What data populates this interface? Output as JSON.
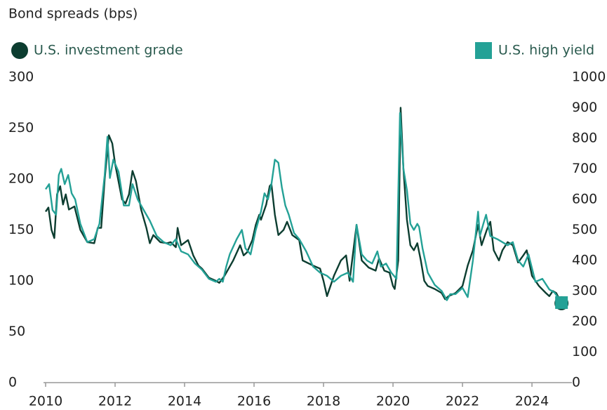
{
  "chart_data": {
    "type": "line",
    "title": "Bond spreads (bps)",
    "xlim": [
      2010,
      2025.15
    ],
    "xticks": [
      2010,
      2012,
      2014,
      2016,
      2018,
      2020,
      2022,
      2024
    ],
    "ylim": [
      0,
      300
    ],
    "yticks": [
      0,
      50,
      100,
      150,
      200,
      250,
      300
    ],
    "y2lim": [
      0,
      1000
    ],
    "y2ticks": [
      0,
      100,
      200,
      300,
      400,
      500,
      600,
      700,
      800,
      900,
      1000
    ],
    "grid": false,
    "series": [
      {
        "name": "U.S. investment grade",
        "color": "#0c3d30",
        "marker": "circle",
        "x": [
          2010.0,
          2010.08,
          2010.17,
          2010.25,
          2010.33,
          2010.42,
          2010.5,
          2010.58,
          2010.67,
          2010.83,
          2011.0,
          2011.2,
          2011.4,
          2011.5,
          2011.6,
          2011.7,
          2011.82,
          2011.92,
          2012.0,
          2012.2,
          2012.3,
          2012.4,
          2012.5,
          2012.6,
          2012.75,
          2012.9,
          2013.0,
          2013.1,
          2013.3,
          2013.5,
          2013.6,
          2013.75,
          2013.8,
          2013.9,
          2014.1,
          2014.25,
          2014.4,
          2014.5,
          2014.7,
          2014.9,
          2015.0,
          2015.15,
          2015.4,
          2015.6,
          2015.7,
          2015.8,
          2015.95,
          2016.05,
          2016.15,
          2016.2,
          2016.35,
          2016.45,
          2016.5,
          2016.6,
          2016.7,
          2016.85,
          2016.95,
          2017.1,
          2017.3,
          2017.4,
          2017.7,
          2017.9,
          2018.0,
          2018.1,
          2018.3,
          2018.5,
          2018.65,
          2018.75,
          2018.95,
          2019.1,
          2019.3,
          2019.5,
          2019.6,
          2019.75,
          2019.9,
          2020.0,
          2020.05,
          2020.15,
          2020.22,
          2020.3,
          2020.4,
          2020.5,
          2020.6,
          2020.7,
          2020.8,
          2020.9,
          2021.0,
          2021.2,
          2021.4,
          2021.5,
          2021.6,
          2021.8,
          2022.0,
          2022.15,
          2022.3,
          2022.45,
          2022.55,
          2022.7,
          2022.8,
          2022.9,
          2023.05,
          2023.15,
          2023.3,
          2023.45,
          2023.6,
          2023.75,
          2023.85,
          2024.0,
          2024.2,
          2024.4,
          2024.5,
          2024.6,
          2024.7,
          2024.85
        ],
        "values": [
          168,
          172,
          150,
          142,
          185,
          193,
          175,
          185,
          170,
          173,
          150,
          138,
          137,
          152,
          152,
          200,
          243,
          235,
          215,
          180,
          176,
          185,
          208,
          198,
          170,
          152,
          137,
          145,
          138,
          137,
          138,
          133,
          152,
          135,
          140,
          125,
          115,
          112,
          103,
          100,
          98,
          105,
          120,
          135,
          125,
          128,
          140,
          155,
          165,
          160,
          175,
          193,
          195,
          165,
          145,
          150,
          158,
          145,
          140,
          120,
          115,
          112,
          100,
          85,
          105,
          120,
          125,
          100,
          155,
          120,
          113,
          110,
          122,
          110,
          108,
          95,
          92,
          120,
          270,
          210,
          160,
          135,
          130,
          137,
          120,
          100,
          95,
          92,
          88,
          82,
          85,
          88,
          95,
          115,
          130,
          155,
          135,
          150,
          158,
          130,
          120,
          130,
          138,
          135,
          118,
          125,
          130,
          105,
          95,
          88,
          85,
          90,
          88,
          78
        ]
      },
      {
        "name": "U.S. high yield",
        "color": "#24a196",
        "marker": "square",
        "axis": "y2",
        "x": [
          2010.0,
          2010.1,
          2010.2,
          2010.3,
          2010.38,
          2010.45,
          2010.55,
          2010.65,
          2010.75,
          2010.85,
          2011.0,
          2011.2,
          2011.4,
          2011.55,
          2011.7,
          2011.78,
          2011.85,
          2011.95,
          2012.1,
          2012.25,
          2012.4,
          2012.5,
          2012.65,
          2012.8,
          2013.0,
          2013.2,
          2013.4,
          2013.6,
          2013.75,
          2013.9,
          2014.1,
          2014.3,
          2014.5,
          2014.7,
          2014.9,
          2015.0,
          2015.1,
          2015.2,
          2015.3,
          2015.5,
          2015.65,
          2015.75,
          2015.9,
          2016.05,
          2016.2,
          2016.3,
          2016.4,
          2016.5,
          2016.6,
          2016.7,
          2016.8,
          2016.9,
          2017.0,
          2017.15,
          2017.3,
          2017.5,
          2017.7,
          2017.9,
          2018.1,
          2018.3,
          2018.5,
          2018.7,
          2018.85,
          2018.95,
          2019.1,
          2019.25,
          2019.4,
          2019.55,
          2019.65,
          2019.8,
          2019.95,
          2020.1,
          2020.2,
          2020.3,
          2020.4,
          2020.5,
          2020.6,
          2020.7,
          2020.75,
          2020.85,
          2021.0,
          2021.2,
          2021.4,
          2021.55,
          2021.65,
          2021.8,
          2022.0,
          2022.15,
          2022.3,
          2022.45,
          2022.5,
          2022.6,
          2022.68,
          2022.8,
          2023.0,
          2023.15,
          2023.3,
          2023.45,
          2023.6,
          2023.75,
          2023.9,
          2024.1,
          2024.3,
          2024.5,
          2024.65,
          2024.85
        ],
        "values": [
          633,
          650,
          565,
          550,
          680,
          700,
          650,
          680,
          620,
          600,
          520,
          460,
          470,
          520,
          680,
          805,
          670,
          730,
          690,
          580,
          580,
          650,
          600,
          570,
          530,
          480,
          460,
          450,
          470,
          430,
          420,
          390,
          370,
          340,
          330,
          340,
          330,
          380,
          420,
          470,
          500,
          440,
          420,
          500,
          560,
          620,
          600,
          650,
          730,
          720,
          640,
          580,
          550,
          490,
          470,
          430,
          380,
          360,
          350,
          330,
          350,
          360,
          330,
          517,
          420,
          400,
          390,
          430,
          380,
          390,
          360,
          340,
          883,
          700,
          630,
          520,
          500,
          520,
          510,
          440,
          360,
          320,
          300,
          270,
          290,
          290,
          310,
          280,
          400,
          560,
          480,
          520,
          550,
          480,
          470,
          460,
          450,
          460,
          400,
          380,
          420,
          330,
          340,
          305,
          295,
          262
        ]
      }
    ]
  }
}
